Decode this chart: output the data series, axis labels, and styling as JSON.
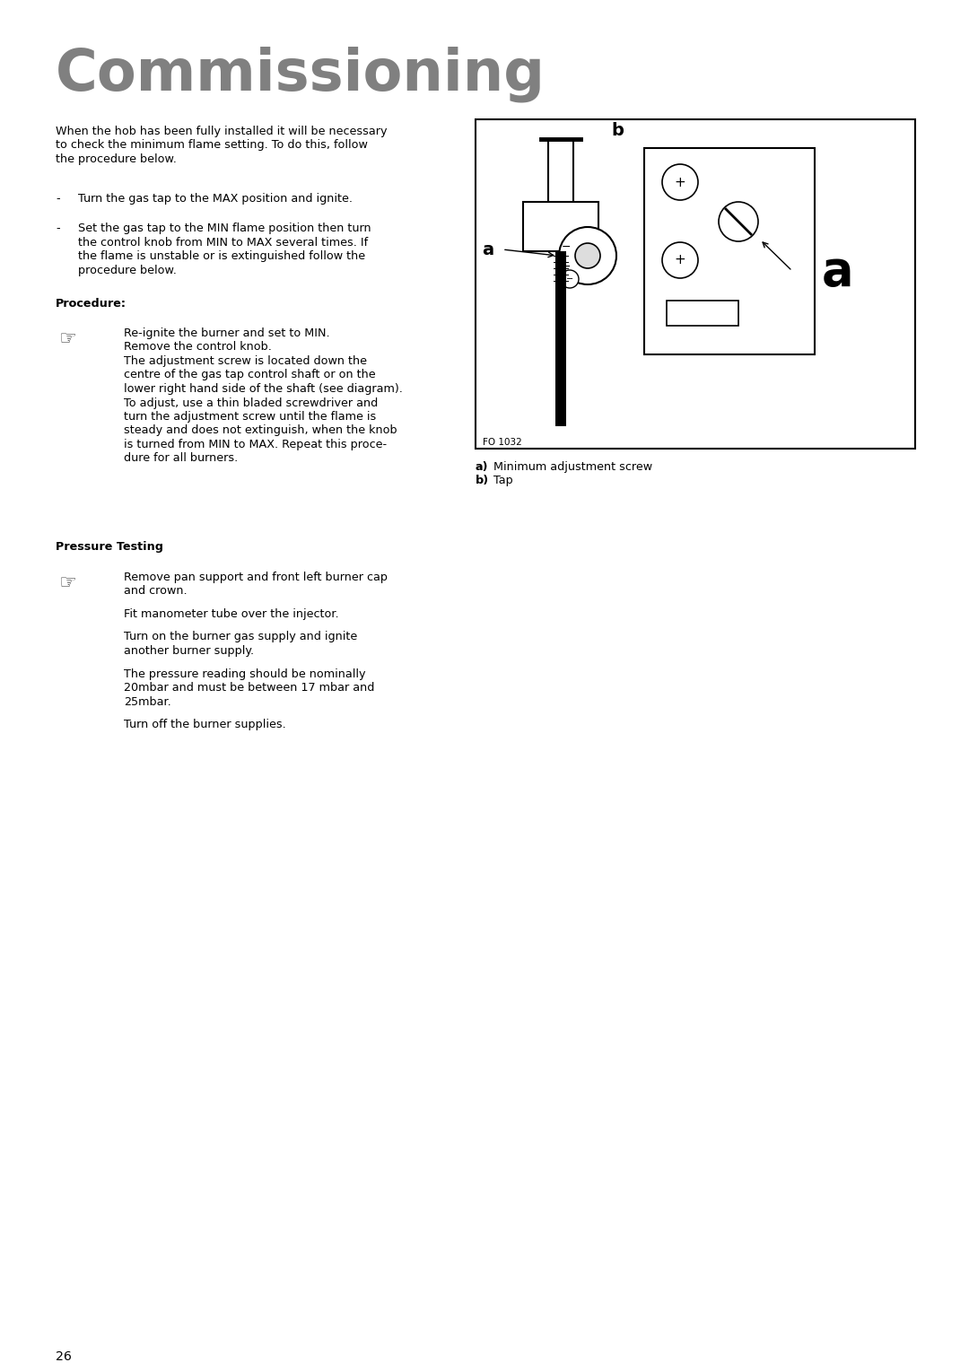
{
  "bg_color": "#ffffff",
  "title": "Commissioning",
  "title_color": "#808080",
  "title_fontsize": 46,
  "page_number": "26",
  "body_fontsize": 9.2,
  "caption_fontsize": 9.2,
  "intro_paragraph": "When the hob has been fully installed it will be necessary\nto check the minimum flame setting. To do this, follow\nthe procedure below.",
  "bullet1": "Turn the gas tap to the MAX position and ignite.",
  "bullet2_lines": [
    "Set the gas tap to the MIN flame position then turn",
    "the control knob from MIN to MAX several times. If",
    "the flame is unstable or is extinguished follow the",
    "procedure below."
  ],
  "procedure_label": "Procedure:",
  "procedure_text_lines": [
    "Re-ignite the burner and set to MIN.",
    "Remove the control knob.",
    "The adjustment screw is located down the",
    "centre of the gas tap control shaft or on the",
    "lower right hand side of the shaft (see diagram).",
    "To adjust, use a thin bladed screwdriver and",
    "turn the adjustment screw until the flame is",
    "steady and does not extinguish, when the knob",
    "is turned from MIN to MAX. Repeat this proce-",
    "dure for all burners."
  ],
  "pressure_label": "Pressure Testing",
  "pressure_text_blocks": [
    [
      "Remove pan support and front left burner cap",
      "and crown."
    ],
    [
      "Fit manometer tube over the injector."
    ],
    [
      "Turn on the burner gas supply and ignite",
      "another burner supply."
    ],
    [
      "The pressure reading should be nominally",
      "20mbar and must be between 17 mbar and",
      "25mbar."
    ],
    [
      "Turn off the burner supplies."
    ]
  ],
  "caption_a": "a)",
  "caption_a_bold": "Minimum adjustment screw",
  "caption_b": "b)",
  "caption_b_bold": "Tap",
  "fo_label": "FO 1032"
}
